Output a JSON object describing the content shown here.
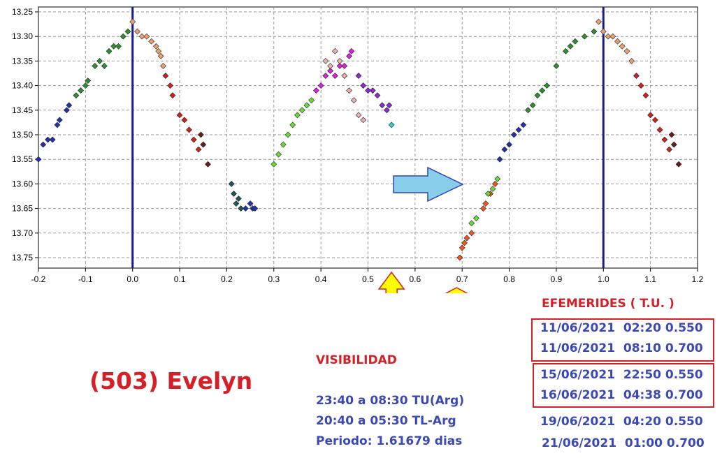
{
  "title": "(503) Evelyn",
  "visibility": {
    "heading": "VISIBILIDAD",
    "lines": [
      "23:40 a 08:30 TU(Arg)",
      "20:40 a 05:30 TL-Arg",
      "Periodo: 1.61679 dias"
    ]
  },
  "ephemerides": {
    "heading": "EFEMERIDES ( T.U. )",
    "entries": [
      "11/06/2021  02:20 0.550",
      "11/06/2021  08:10 0.700",
      "15/06/2021  22:50 0.550",
      "16/06/2021  04:38 0.700",
      "19/06/2021  04:20 0.550",
      "21/06/2021  01:00 0.700"
    ]
  },
  "colors": {
    "accent_red": "#d62027",
    "text_blue": "#3a49b3",
    "marker_line": "#1f1f8a",
    "arrow_blue": "#87ceeb",
    "arrow_yellow": "#ffff00"
  },
  "chart_data": {
    "type": "scatter",
    "xlim": [
      -0.2,
      1.2
    ],
    "ylim": [
      13.25,
      13.77
    ],
    "y_inverted": true,
    "grid": true,
    "x_ticks": [
      "-0.2",
      "-0.1",
      "0.0",
      "0.1",
      "0.2",
      "0.3",
      "0.4",
      "0.5",
      "0.6",
      "0.7",
      "0.8",
      "0.9",
      "1.0",
      "1.1",
      "1.2"
    ],
    "y_ticks": [
      "13.25",
      "13.30",
      "13.35",
      "13.40",
      "13.45",
      "13.50",
      "13.55",
      "13.60",
      "13.65",
      "13.70",
      "13.75"
    ],
    "vertical_lines": [
      0.0,
      1.0
    ],
    "phase_markers": [
      0.55,
      0.7
    ],
    "series": [
      {
        "color": "#2233aa",
        "points": [
          [
            -0.2,
            13.55
          ],
          [
            -0.19,
            13.52
          ],
          [
            -0.18,
            13.51
          ],
          [
            -0.17,
            13.51
          ],
          [
            -0.16,
            13.48
          ],
          [
            -0.155,
            13.47
          ],
          [
            -0.14,
            13.45
          ],
          [
            -0.135,
            13.44
          ]
        ]
      },
      {
        "color": "#2f8f2f",
        "points": [
          [
            -0.12,
            13.42
          ],
          [
            -0.11,
            13.41
          ],
          [
            -0.1,
            13.4
          ],
          [
            -0.095,
            13.39
          ],
          [
            -0.08,
            13.36
          ],
          [
            -0.07,
            13.35
          ],
          [
            -0.06,
            13.36
          ],
          [
            -0.05,
            13.33
          ],
          [
            -0.04,
            13.32
          ],
          [
            -0.03,
            13.32
          ],
          [
            -0.02,
            13.3
          ],
          [
            -0.01,
            13.29
          ]
        ]
      },
      {
        "color": "#e8a070",
        "points": [
          [
            0.0,
            13.27
          ],
          [
            0.01,
            13.29
          ],
          [
            0.02,
            13.3
          ],
          [
            0.03,
            13.3
          ],
          [
            0.04,
            13.31
          ],
          [
            0.05,
            13.32
          ],
          [
            0.055,
            13.33
          ],
          [
            0.06,
            13.34
          ],
          [
            0.065,
            13.36
          ]
        ]
      },
      {
        "color": "#cc2222",
        "points": [
          [
            0.07,
            13.38
          ],
          [
            0.08,
            13.4
          ],
          [
            0.085,
            13.42
          ],
          [
            0.1,
            13.46
          ],
          [
            0.11,
            13.47
          ],
          [
            0.12,
            13.49
          ],
          [
            0.13,
            13.51
          ],
          [
            0.14,
            13.53
          ]
        ]
      },
      {
        "color": "#6b1a1a",
        "points": [
          [
            0.145,
            13.5
          ],
          [
            0.15,
            13.52
          ],
          [
            0.16,
            13.56
          ]
        ]
      },
      {
        "color": "#1f5555",
        "points": [
          [
            0.21,
            13.6
          ],
          [
            0.215,
            13.62
          ],
          [
            0.22,
            13.64
          ],
          [
            0.225,
            13.63
          ],
          [
            0.23,
            13.65
          ]
        ]
      },
      {
        "color": "#2233aa",
        "points": [
          [
            0.24,
            13.65
          ],
          [
            0.25,
            13.64
          ],
          [
            0.255,
            13.65
          ],
          [
            0.26,
            13.65
          ]
        ]
      },
      {
        "color": "#66dd33",
        "points": [
          [
            0.3,
            13.56
          ],
          [
            0.31,
            13.54
          ],
          [
            0.32,
            13.52
          ],
          [
            0.33,
            13.5
          ],
          [
            0.34,
            13.48
          ],
          [
            0.35,
            13.46
          ],
          [
            0.36,
            13.45
          ],
          [
            0.37,
            13.44
          ],
          [
            0.38,
            13.43
          ]
        ]
      },
      {
        "color": "#dd22dd",
        "points": [
          [
            0.39,
            13.41
          ],
          [
            0.4,
            13.4
          ],
          [
            0.41,
            13.38
          ],
          [
            0.42,
            13.37
          ],
          [
            0.43,
            13.38
          ],
          [
            0.44,
            13.36
          ],
          [
            0.45,
            13.36
          ],
          [
            0.46,
            13.34
          ],
          [
            0.465,
            13.33
          ]
        ]
      },
      {
        "color": "#e8b0b0",
        "points": [
          [
            0.41,
            13.35
          ],
          [
            0.42,
            13.36
          ],
          [
            0.43,
            13.33
          ],
          [
            0.44,
            13.35
          ],
          [
            0.45,
            13.38
          ],
          [
            0.46,
            13.41
          ],
          [
            0.47,
            13.43
          ],
          [
            0.48,
            13.46
          ],
          [
            0.49,
            13.47
          ]
        ]
      },
      {
        "color": "#8a2ad0",
        "points": [
          [
            0.48,
            13.38
          ],
          [
            0.49,
            13.4
          ],
          [
            0.5,
            13.41
          ],
          [
            0.51,
            13.41
          ],
          [
            0.52,
            13.42
          ],
          [
            0.53,
            13.44
          ],
          [
            0.54,
            13.45
          ],
          [
            0.545,
            13.44
          ]
        ]
      },
      {
        "color": "#33cccc",
        "points": [
          [
            0.55,
            13.48
          ]
        ]
      },
      {
        "color": "#ee5522",
        "points": [
          [
            0.695,
            13.75
          ],
          [
            0.7,
            13.73
          ],
          [
            0.705,
            13.72
          ],
          [
            0.71,
            13.71
          ],
          [
            0.72,
            13.7
          ],
          [
            0.745,
            13.65
          ],
          [
            0.75,
            13.64
          ],
          [
            0.76,
            13.62
          ],
          [
            0.77,
            13.6
          ]
        ]
      },
      {
        "color": "#66dd33",
        "points": [
          [
            0.72,
            13.68
          ],
          [
            0.73,
            13.67
          ],
          [
            0.755,
            13.62
          ],
          [
            0.765,
            13.61
          ],
          [
            0.775,
            13.59
          ]
        ]
      },
      {
        "color": "#2233aa",
        "points": [
          [
            0.78,
            13.55
          ],
          [
            0.79,
            13.53
          ],
          [
            0.8,
            13.52
          ],
          [
            0.81,
            13.5
          ],
          [
            0.82,
            13.49
          ],
          [
            0.83,
            13.48
          ]
        ]
      },
      {
        "color": "#2f8f2f",
        "points": [
          [
            0.84,
            13.45
          ],
          [
            0.85,
            13.44
          ],
          [
            0.86,
            13.42
          ],
          [
            0.87,
            13.41
          ],
          [
            0.88,
            13.4
          ],
          [
            0.9,
            13.36
          ],
          [
            0.92,
            13.33
          ],
          [
            0.93,
            13.32
          ],
          [
            0.94,
            13.31
          ],
          [
            0.96,
            13.3
          ],
          [
            0.98,
            13.29
          ]
        ]
      },
      {
        "color": "#e8a070",
        "points": [
          [
            0.99,
            13.27
          ],
          [
            1.0,
            13.29
          ],
          [
            1.01,
            13.3
          ],
          [
            1.02,
            13.3
          ],
          [
            1.03,
            13.31
          ],
          [
            1.04,
            13.32
          ],
          [
            1.05,
            13.33
          ],
          [
            1.06,
            13.35
          ]
        ]
      },
      {
        "color": "#cc2222",
        "points": [
          [
            1.07,
            13.38
          ],
          [
            1.08,
            13.4
          ],
          [
            1.09,
            13.42
          ],
          [
            1.1,
            13.46
          ],
          [
            1.11,
            13.47
          ],
          [
            1.12,
            13.49
          ],
          [
            1.13,
            13.51
          ],
          [
            1.14,
            13.53
          ]
        ]
      },
      {
        "color": "#6b1a1a",
        "points": [
          [
            1.145,
            13.5
          ],
          [
            1.15,
            13.52
          ],
          [
            1.16,
            13.56
          ]
        ]
      }
    ]
  }
}
